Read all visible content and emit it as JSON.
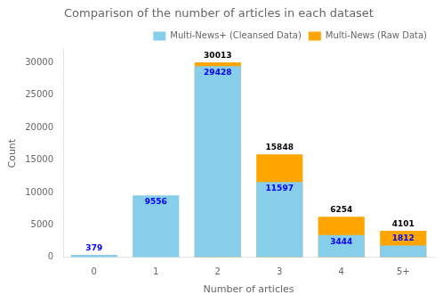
{
  "chart_data": {
    "type": "bar",
    "title": "Comparison of the number of articles in each dataset",
    "xlabel": "Number of articles",
    "ylabel": "Count",
    "categories": [
      "0",
      "1",
      "2",
      "3",
      "4",
      "5+"
    ],
    "series": [
      {
        "name": "Multi-News (Raw Data)",
        "color": "#FFA500",
        "values": [
          0,
          0,
          30013,
          15848,
          6254,
          4101
        ],
        "value_labels": [
          null,
          null,
          "30013",
          "15848",
          "6254",
          "4101"
        ]
      },
      {
        "name": "Multi-News+ (Cleansed Data)",
        "color": "#87CEEB",
        "values": [
          379,
          9556,
          29428,
          11597,
          3444,
          1812
        ]
      }
    ],
    "ylim": [
      0,
      32000
    ],
    "yticks": [
      0,
      5000,
      10000,
      15000,
      20000,
      25000,
      30000
    ],
    "grid": false,
    "legend": "upper right",
    "data_labels": true
  }
}
